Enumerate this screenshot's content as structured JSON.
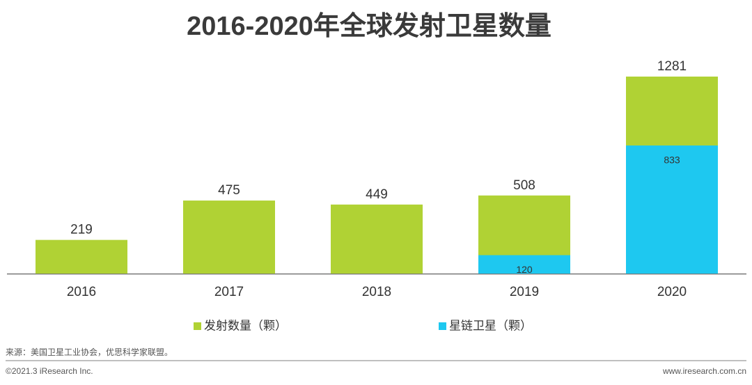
{
  "chart_data": {
    "type": "bar",
    "overlap": true,
    "title": "2016-2020年全球发射卫星数量",
    "categories": [
      "2016",
      "2017",
      "2018",
      "2019",
      "2020"
    ],
    "series": [
      {
        "name": "发射数量（颗）",
        "color": "#b0d234",
        "values": [
          219,
          475,
          449,
          508,
          1281
        ]
      },
      {
        "name": "星链卫星（颗）",
        "color": "#1ec8f0",
        "values": [
          null,
          null,
          null,
          120,
          833
        ]
      }
    ]
  },
  "footer": {
    "source": "来源：美国卫星工业协会，优思科学家联盟。",
    "copyright": "©2021.3 iResearch Inc.",
    "website": "www.iresearch.com.cn"
  }
}
